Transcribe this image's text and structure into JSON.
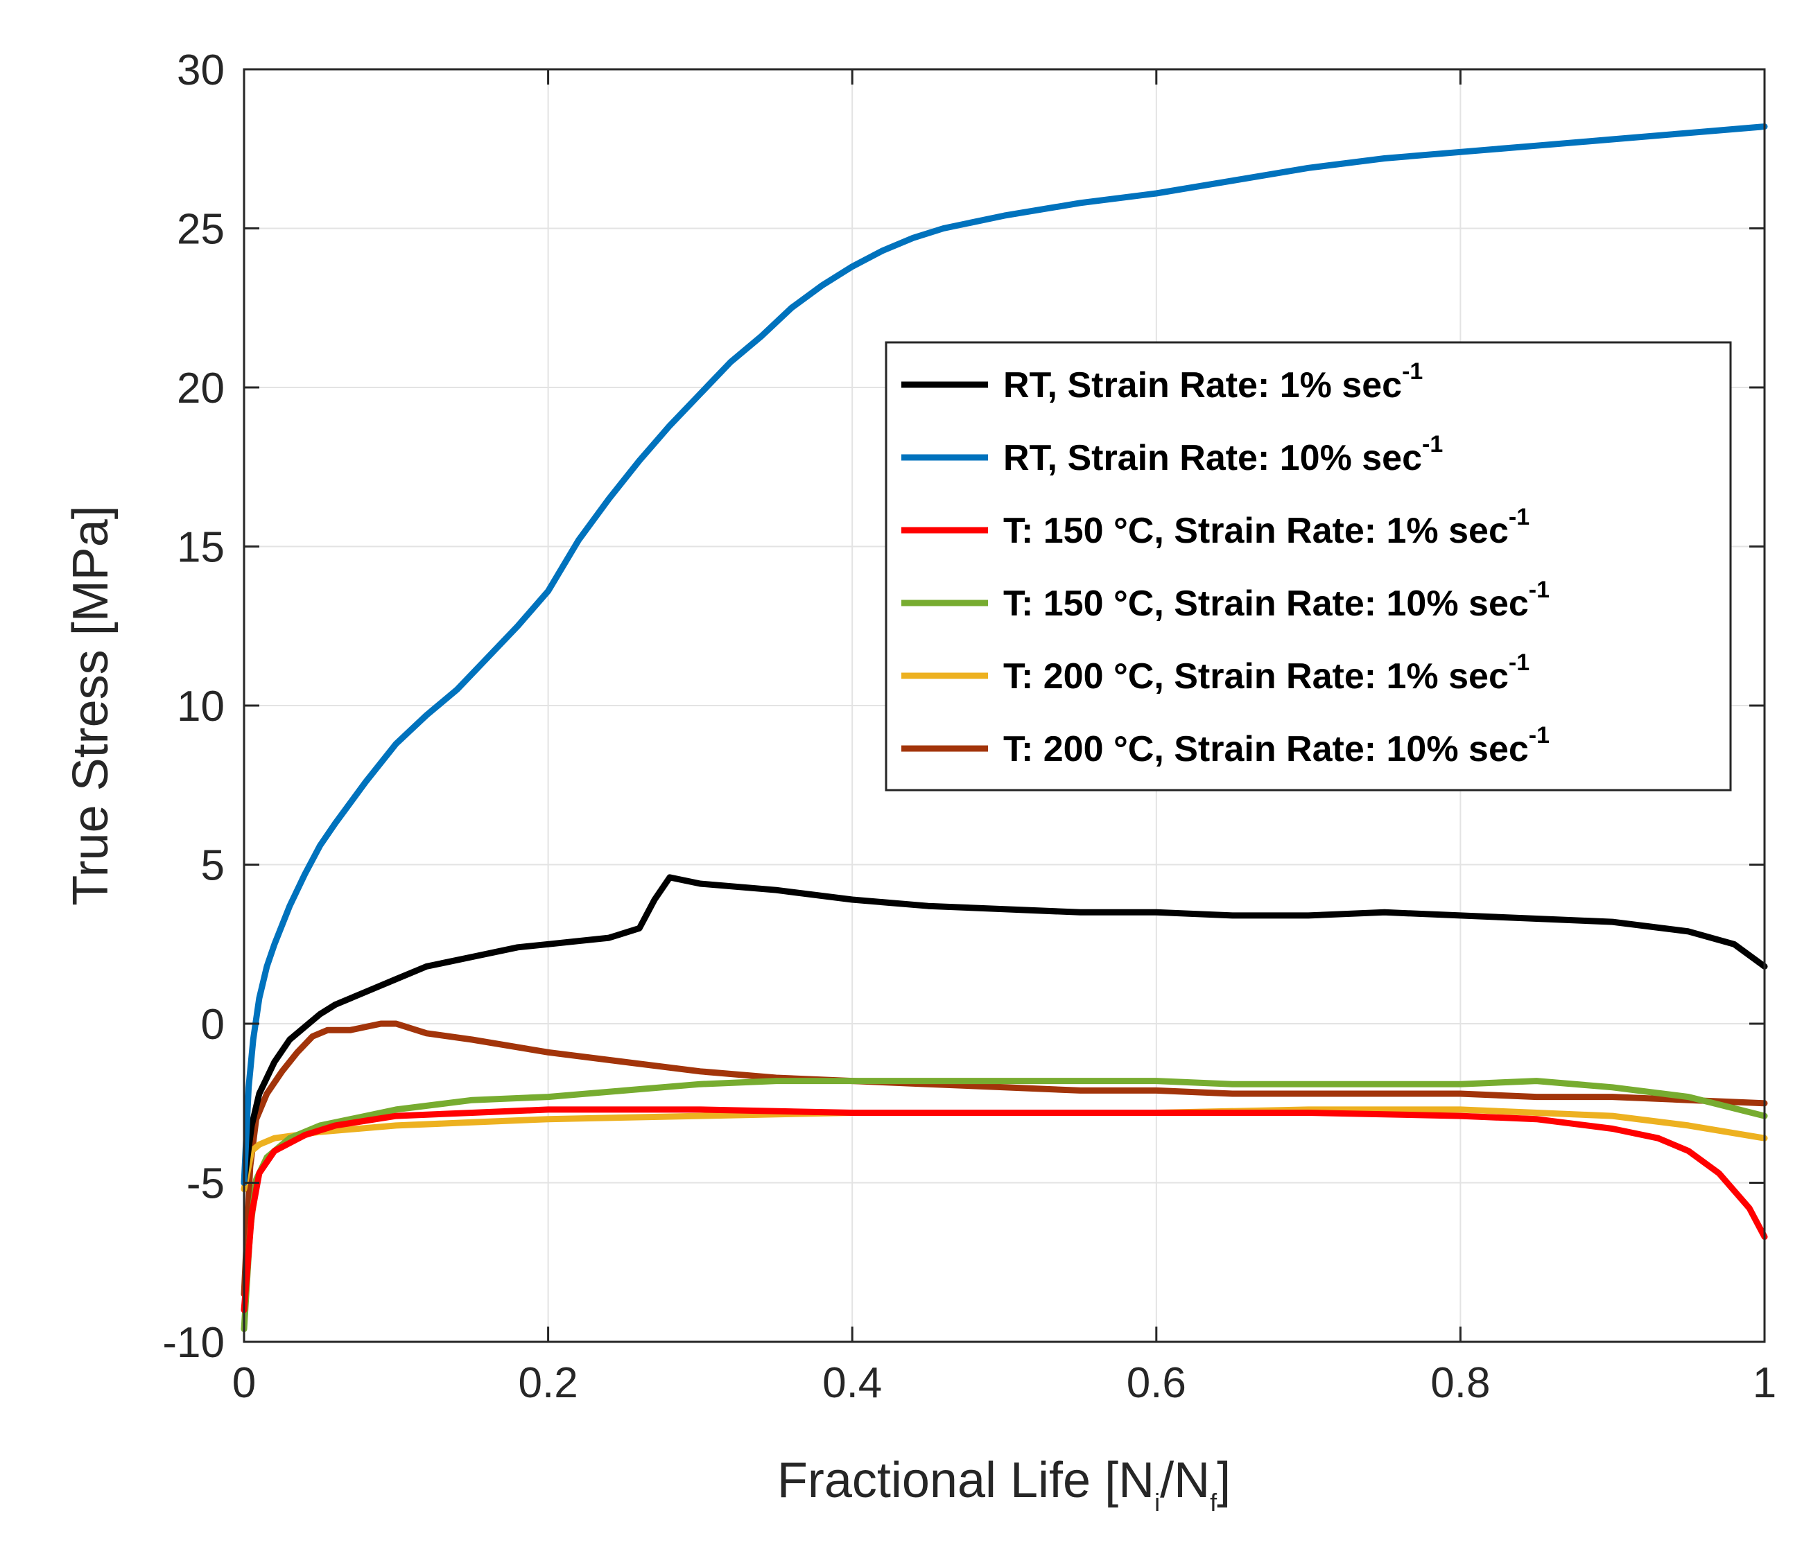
{
  "chart_data": {
    "type": "line",
    "xlabel": {
      "main": "Fractional Life [N",
      "sub_i": "i",
      "mid": "/N",
      "sub_f": "f",
      "end": "]"
    },
    "ylabel": "True Stress [MPa]",
    "xlim": [
      0,
      1
    ],
    "ylim": [
      -10,
      30
    ],
    "xticks": [
      "0",
      "0.2",
      "0.4",
      "0.6",
      "0.8",
      "1"
    ],
    "yticks": [
      "-10",
      "-5",
      "0",
      "5",
      "10",
      "15",
      "20",
      "25",
      "30"
    ],
    "xtick_values": [
      0,
      0.2,
      0.4,
      0.6,
      0.8,
      1
    ],
    "ytick_values": [
      -10,
      -5,
      0,
      5,
      10,
      15,
      20,
      25,
      30
    ],
    "grid": true,
    "legend_position": "center-right",
    "series": [
      {
        "name": "RT, Strain Rate: 1% sec",
        "sup": "-1",
        "color": "#000000",
        "x": [
          0,
          0.005,
          0.01,
          0.02,
          0.03,
          0.04,
          0.05,
          0.06,
          0.08,
          0.1,
          0.12,
          0.15,
          0.18,
          0.2,
          0.22,
          0.24,
          0.26,
          0.27,
          0.28,
          0.3,
          0.35,
          0.4,
          0.45,
          0.5,
          0.55,
          0.6,
          0.65,
          0.7,
          0.75,
          0.8,
          0.85,
          0.9,
          0.95,
          0.98,
          1.0
        ],
        "y": [
          -5,
          -3.2,
          -2.2,
          -1.2,
          -0.5,
          -0.1,
          0.3,
          0.6,
          1.0,
          1.4,
          1.8,
          2.1,
          2.4,
          2.5,
          2.6,
          2.7,
          3.0,
          3.9,
          4.6,
          4.4,
          4.2,
          3.9,
          3.7,
          3.6,
          3.5,
          3.5,
          3.4,
          3.4,
          3.5,
          3.4,
          3.3,
          3.2,
          2.9,
          2.5,
          1.8
        ]
      },
      {
        "name": "RT, Strain Rate: 10% sec",
        "sup": "-1",
        "color": "#0072BD",
        "x": [
          0,
          0.003,
          0.006,
          0.01,
          0.015,
          0.02,
          0.03,
          0.04,
          0.05,
          0.06,
          0.08,
          0.1,
          0.12,
          0.14,
          0.16,
          0.18,
          0.2,
          0.22,
          0.24,
          0.26,
          0.28,
          0.3,
          0.32,
          0.34,
          0.36,
          0.38,
          0.4,
          0.42,
          0.44,
          0.46,
          0.48,
          0.5,
          0.55,
          0.6,
          0.65,
          0.7,
          0.75,
          0.8,
          0.85,
          0.9,
          0.95,
          1.0
        ],
        "y": [
          -5,
          -2,
          -0.5,
          0.8,
          1.8,
          2.5,
          3.7,
          4.7,
          5.6,
          6.3,
          7.6,
          8.8,
          9.7,
          10.5,
          11.5,
          12.5,
          13.6,
          15.2,
          16.5,
          17.7,
          18.8,
          19.8,
          20.8,
          21.6,
          22.5,
          23.2,
          23.8,
          24.3,
          24.7,
          25.0,
          25.2,
          25.4,
          25.8,
          26.1,
          26.5,
          26.9,
          27.2,
          27.4,
          27.6,
          27.8,
          28.0,
          28.2
        ]
      },
      {
        "name": "T: 150 °C, Strain Rate: 1% sec",
        "sup": "-1",
        "color": "#FF0000",
        "x": [
          0,
          0.005,
          0.01,
          0.02,
          0.04,
          0.06,
          0.1,
          0.15,
          0.2,
          0.3,
          0.4,
          0.5,
          0.6,
          0.7,
          0.8,
          0.85,
          0.9,
          0.93,
          0.95,
          0.97,
          0.99,
          1.0
        ],
        "y": [
          -9,
          -6,
          -4.7,
          -4.0,
          -3.5,
          -3.2,
          -2.9,
          -2.8,
          -2.7,
          -2.7,
          -2.8,
          -2.8,
          -2.8,
          -2.8,
          -2.9,
          -3.0,
          -3.3,
          -3.6,
          -4.0,
          -4.7,
          -5.8,
          -6.7
        ]
      },
      {
        "name": "T: 150 °C, Strain Rate: 10% sec",
        "sup": "-1",
        "color": "#77AC30",
        "x": [
          0,
          0.004,
          0.008,
          0.015,
          0.03,
          0.05,
          0.08,
          0.1,
          0.15,
          0.2,
          0.25,
          0.3,
          0.35,
          0.4,
          0.45,
          0.5,
          0.55,
          0.6,
          0.65,
          0.7,
          0.75,
          0.8,
          0.85,
          0.9,
          0.95,
          1.0
        ],
        "y": [
          -9.6,
          -6.5,
          -4.9,
          -4.2,
          -3.6,
          -3.2,
          -2.9,
          -2.7,
          -2.4,
          -2.3,
          -2.1,
          -1.9,
          -1.8,
          -1.8,
          -1.8,
          -1.8,
          -1.8,
          -1.8,
          -1.9,
          -1.9,
          -1.9,
          -1.9,
          -1.8,
          -2.0,
          -2.3,
          -2.9
        ]
      },
      {
        "name": "T: 200 °C, Strain Rate: 1% sec",
        "sup": "-1",
        "color": "#EDB120",
        "x": [
          0,
          0.005,
          0.01,
          0.02,
          0.05,
          0.1,
          0.15,
          0.2,
          0.3,
          0.4,
          0.5,
          0.6,
          0.7,
          0.8,
          0.85,
          0.9,
          0.95,
          1.0
        ],
        "y": [
          -5.2,
          -4.0,
          -3.8,
          -3.6,
          -3.4,
          -3.2,
          -3.1,
          -3.0,
          -2.9,
          -2.8,
          -2.8,
          -2.8,
          -2.7,
          -2.7,
          -2.8,
          -2.9,
          -3.2,
          -3.6
        ]
      },
      {
        "name": "T: 200 °C, Strain Rate: 10% sec",
        "sup": "-1",
        "color": "#A2340A",
        "x": [
          0,
          0.004,
          0.008,
          0.015,
          0.025,
          0.035,
          0.045,
          0.055,
          0.07,
          0.09,
          0.1,
          0.12,
          0.15,
          0.2,
          0.25,
          0.3,
          0.35,
          0.4,
          0.45,
          0.5,
          0.55,
          0.6,
          0.65,
          0.7,
          0.75,
          0.8,
          0.85,
          0.9,
          0.95,
          1.0
        ],
        "y": [
          -8.5,
          -4.5,
          -3.0,
          -2.2,
          -1.5,
          -0.9,
          -0.4,
          -0.2,
          -0.2,
          0,
          0,
          -0.3,
          -0.5,
          -0.9,
          -1.2,
          -1.5,
          -1.7,
          -1.8,
          -1.9,
          -2.0,
          -2.1,
          -2.1,
          -2.2,
          -2.2,
          -2.2,
          -2.2,
          -2.3,
          -2.3,
          -2.4,
          -2.5
        ]
      }
    ]
  }
}
